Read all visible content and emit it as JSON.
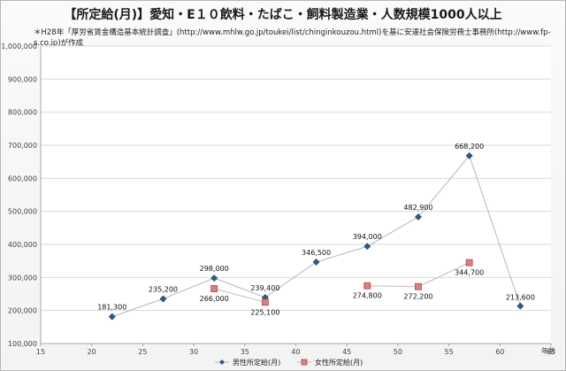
{
  "chart_data": {
    "type": "line",
    "title": "【所定給(月)】愛知・E１０飲料・たばこ・飼料製造業・人数規模1000人以上",
    "subtitle": "＊H28年「厚労省賃金構造基本統計調査」(http://www.mhlw.go.jp/toukei/list/chinginkouzou.html)を基に安達社会保険労務士事務所(http://www.fp-s.co.jp)が作成",
    "xlabel": "年齢",
    "ylabel": "",
    "xlim": [
      15,
      65
    ],
    "ylim": [
      100000,
      1000000
    ],
    "xticks": [
      15,
      20,
      25,
      30,
      35,
      40,
      45,
      50,
      55,
      60,
      65
    ],
    "xtick_labels": [
      "15",
      "20",
      "25",
      "30",
      "35",
      "40",
      "45",
      "50",
      "55",
      "60",
      "65"
    ],
    "yticks": [
      100000,
      200000,
      300000,
      400000,
      500000,
      600000,
      700000,
      800000,
      900000,
      1000000
    ],
    "ytick_labels": [
      "100,000",
      "200,000",
      "300,000",
      "400,000",
      "500,000",
      "600,000",
      "700,000",
      "800,000",
      "900,000",
      "1,000,000"
    ],
    "grid": "horizontal",
    "legend_position": "bottom",
    "series": [
      {
        "name": "男性所定給(月)",
        "color": "#2e5b8c",
        "marker": "diamond",
        "points": [
          {
            "x": 22,
            "y": 181300,
            "label": "181,300"
          },
          {
            "x": 27,
            "y": 235200,
            "label": "235,200"
          },
          {
            "x": 32,
            "y": 298000,
            "label": "298,000"
          },
          {
            "x": 37,
            "y": 239400,
            "label": "239,400"
          },
          {
            "x": 42,
            "y": 346500,
            "label": "346,500"
          },
          {
            "x": 47,
            "y": 394000,
            "label": "394,000"
          },
          {
            "x": 52,
            "y": 482900,
            "label": "482,900"
          },
          {
            "x": 57,
            "y": 668200,
            "label": "668,200"
          },
          {
            "x": 62,
            "y": 213600,
            "label": "213,600"
          }
        ]
      },
      {
        "name": "女性所定給(月)",
        "color": "#d98080",
        "marker": "square",
        "segments": [
          [
            {
              "x": 32,
              "y": 266000,
              "label": "266,000"
            },
            {
              "x": 37,
              "y": 225100,
              "label": "225,100"
            }
          ],
          [
            {
              "x": 47,
              "y": 274800,
              "label": "274,800"
            },
            {
              "x": 52,
              "y": 272200,
              "label": "272,200"
            },
            {
              "x": 57,
              "y": 344700,
              "label": "344,700"
            }
          ]
        ]
      }
    ]
  }
}
